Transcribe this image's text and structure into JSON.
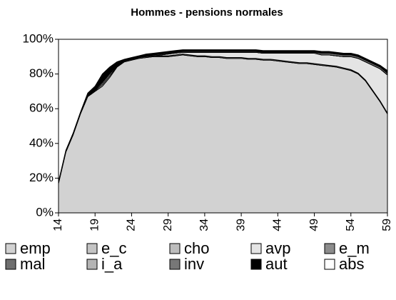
{
  "chart_data": {
    "type": "stacked_area",
    "title": "Hommes - pensions normales",
    "x": [
      14,
      15,
      16,
      17,
      18,
      19,
      20,
      21,
      22,
      23,
      24,
      25,
      26,
      27,
      28,
      29,
      30,
      31,
      32,
      33,
      34,
      35,
      36,
      37,
      38,
      39,
      40,
      41,
      42,
      43,
      44,
      45,
      46,
      47,
      48,
      49,
      50,
      51,
      52,
      53,
      54,
      55,
      56,
      57,
      58,
      59
    ],
    "xlim": [
      14,
      59
    ],
    "xticks": [
      14,
      19,
      24,
      29,
      34,
      39,
      44,
      49,
      54,
      59
    ],
    "ylim": [
      0,
      100
    ],
    "yticks": [
      {
        "value": 0,
        "label": "0%"
      },
      {
        "value": 20,
        "label": "20%"
      },
      {
        "value": 40,
        "label": "40%"
      },
      {
        "value": 60,
        "label": "60%"
      },
      {
        "value": 80,
        "label": "80%"
      },
      {
        "value": 100,
        "label": "100%"
      }
    ],
    "series": [
      {
        "name": "emp",
        "color": "#d2d2d2",
        "values": [
          17,
          35,
          45,
          57,
          67,
          70,
          73,
          78,
          84,
          87,
          88,
          89,
          89.5,
          90,
          90,
          90,
          90.5,
          91,
          90.5,
          90,
          90,
          89.5,
          89.5,
          89,
          89,
          89,
          88.5,
          88.5,
          88,
          88,
          87.5,
          87,
          86.5,
          86,
          86,
          85.5,
          85,
          84.5,
          84,
          83,
          82,
          80,
          76,
          70,
          64,
          57
        ]
      },
      {
        "name": "e_c",
        "color": "#c4c4c4",
        "values": [
          0,
          0,
          0,
          0,
          0,
          0,
          0,
          0,
          0,
          0,
          0,
          0,
          0,
          0,
          0,
          0,
          0,
          0,
          0,
          0,
          0,
          0,
          0,
          0,
          0,
          0,
          0,
          0,
          0,
          0,
          0,
          0,
          0,
          0,
          0,
          0,
          0,
          0,
          0,
          0,
          0,
          0,
          0,
          0,
          0,
          0
        ]
      },
      {
        "name": "cho",
        "color": "#bdbdbd",
        "values": [
          0.5,
          0.5,
          0.5,
          0.5,
          0.5,
          0.5,
          1,
          1,
          0.5,
          0.5,
          0.5,
          0.5,
          0.5,
          0.5,
          0.5,
          0.5,
          0.5,
          0.5,
          0.5,
          0.5,
          0.5,
          0.5,
          0.5,
          0.5,
          0.5,
          0.5,
          0.5,
          0.5,
          0.5,
          0.5,
          0.5,
          0.5,
          0.5,
          0.5,
          0.5,
          0.5,
          0.5,
          0.5,
          0.5,
          0.5,
          0.5,
          0.5,
          0.5,
          0.5,
          0.5,
          0.5
        ]
      },
      {
        "name": "avp",
        "color": "#e4e4e4",
        "values": [
          0,
          0,
          0,
          0,
          0.5,
          0.5,
          1,
          1,
          0.5,
          0,
          0,
          0,
          0.5,
          0,
          0.5,
          1,
          1,
          1,
          1.5,
          2,
          2,
          2.5,
          2.5,
          3,
          3,
          3,
          3.5,
          3.5,
          3.5,
          3.5,
          4,
          4.5,
          5,
          5.5,
          5.5,
          6,
          5.5,
          6,
          6,
          6.5,
          7.5,
          8.5,
          10.5,
          14.5,
          18.5,
          22
        ]
      },
      {
        "name": "e_m",
        "color": "#8c8c8c",
        "values": [
          0,
          0,
          0,
          0,
          0,
          0,
          0,
          0,
          0,
          0,
          0,
          0,
          0,
          0,
          0,
          0,
          0,
          0,
          0,
          0,
          0,
          0,
          0,
          0,
          0,
          0,
          0,
          0,
          0,
          0,
          0,
          0,
          0,
          0,
          0,
          0,
          0,
          0,
          0,
          0,
          0,
          0,
          0,
          0,
          0,
          0
        ]
      },
      {
        "name": "mal",
        "color": "#6e6e6e",
        "values": [
          0,
          0,
          0,
          0,
          0,
          0,
          0,
          0,
          0,
          0,
          0,
          0,
          0,
          0,
          0,
          0,
          0,
          0,
          0,
          0,
          0,
          0,
          0,
          0,
          0,
          0,
          0,
          0,
          0,
          0,
          0,
          0,
          0,
          0,
          0,
          0,
          0,
          0,
          0,
          0,
          0,
          0,
          0,
          0,
          0,
          0
        ]
      },
      {
        "name": "i_a",
        "color": "#b4b4b4",
        "values": [
          0,
          0,
          0,
          0,
          0,
          0,
          0,
          0,
          0,
          0,
          0,
          0,
          0,
          0,
          0,
          0,
          0,
          0,
          0,
          0,
          0,
          0,
          0,
          0,
          0,
          0,
          0,
          0,
          0,
          0,
          0,
          0,
          0,
          0,
          0,
          0,
          0,
          0,
          0,
          0,
          0,
          0,
          0,
          0,
          0,
          0
        ]
      },
      {
        "name": "inv",
        "color": "#777777",
        "values": [
          0,
          0,
          0,
          0,
          0,
          0,
          0,
          0,
          0,
          0,
          0,
          0,
          0,
          0.5,
          0.5,
          0.5,
          0.5,
          0.5,
          0.5,
          0.5,
          0.5,
          0.5,
          0.5,
          0.5,
          0.5,
          0.5,
          0.5,
          0.5,
          0.5,
          0.5,
          0.5,
          0.5,
          0.5,
          0.5,
          0.5,
          0.5,
          1,
          1,
          1,
          1,
          1,
          1,
          1,
          1,
          1,
          1
        ]
      },
      {
        "name": "aut",
        "color": "#000000",
        "values": [
          0.5,
          0.5,
          0.5,
          0.5,
          1,
          2,
          5,
          4,
          2,
          1,
          1,
          1,
          1,
          1,
          1,
          1,
          1,
          1,
          1,
          1,
          1,
          1,
          1,
          1,
          1,
          1,
          1,
          1,
          1,
          1,
          1,
          1,
          1,
          1,
          1,
          1,
          1,
          1,
          1,
          1,
          1,
          1,
          1,
          1,
          1,
          1.5
        ]
      },
      {
        "name": "abs",
        "color": "#ffffff",
        "values": [
          82,
          64,
          54,
          42,
          31,
          27,
          20,
          16,
          13,
          11.5,
          10.5,
          9.5,
          8.5,
          8,
          7.5,
          7,
          6.5,
          6,
          6,
          6,
          6,
          6,
          6,
          6,
          6,
          6,
          6,
          6,
          6.5,
          6.5,
          6.5,
          6.5,
          6.5,
          6.5,
          6.5,
          6.5,
          7,
          7,
          7.5,
          8,
          8,
          9,
          11,
          13,
          15,
          18
        ]
      }
    ]
  }
}
